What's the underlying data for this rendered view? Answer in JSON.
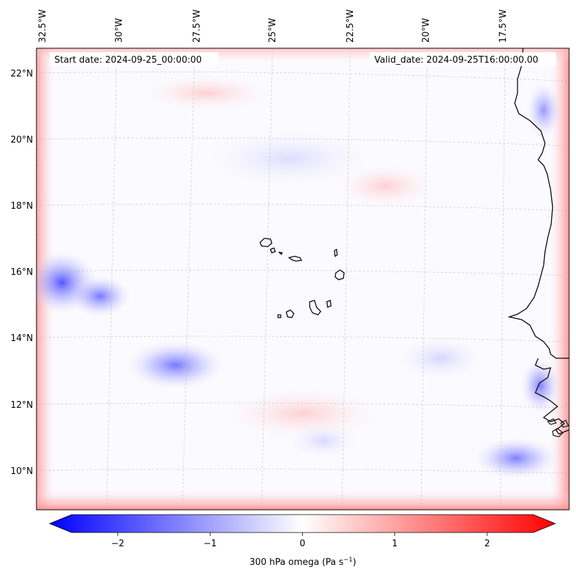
{
  "header": {
    "start_date": "Start date: 2024-09-25_00:00:00",
    "valid_date": "Valid_date: 2024-09-25T16:00:00.00"
  },
  "map": {
    "field": "300 hPa omega",
    "region": "Cabo Verde / West African coast",
    "longitude_labels": [
      "32.5°W",
      "30°W",
      "27.5°W",
      "25°W",
      "22.5°W",
      "20°W",
      "17.5°W"
    ],
    "latitude_labels": [
      "22°N",
      "20°N",
      "18°N",
      "16°N",
      "14°N",
      "12°N",
      "10°N"
    ],
    "gridlines": "dashed grey",
    "colormap": "bwr",
    "colors": {
      "negative": "#0000ff",
      "zero": "#ffffff",
      "positive": "#ff0000",
      "coastline": "#000000"
    }
  },
  "colorbar": {
    "label_main": "300 hPa omega (Pa s",
    "label_sup": "−1",
    "label_close": ")",
    "ticks": [
      "−2",
      "−1",
      "0",
      "1",
      "2"
    ],
    "tick_values": [
      -2,
      -1,
      0,
      1,
      2
    ],
    "range": [
      -2.5,
      2.5
    ],
    "extend": "both"
  }
}
